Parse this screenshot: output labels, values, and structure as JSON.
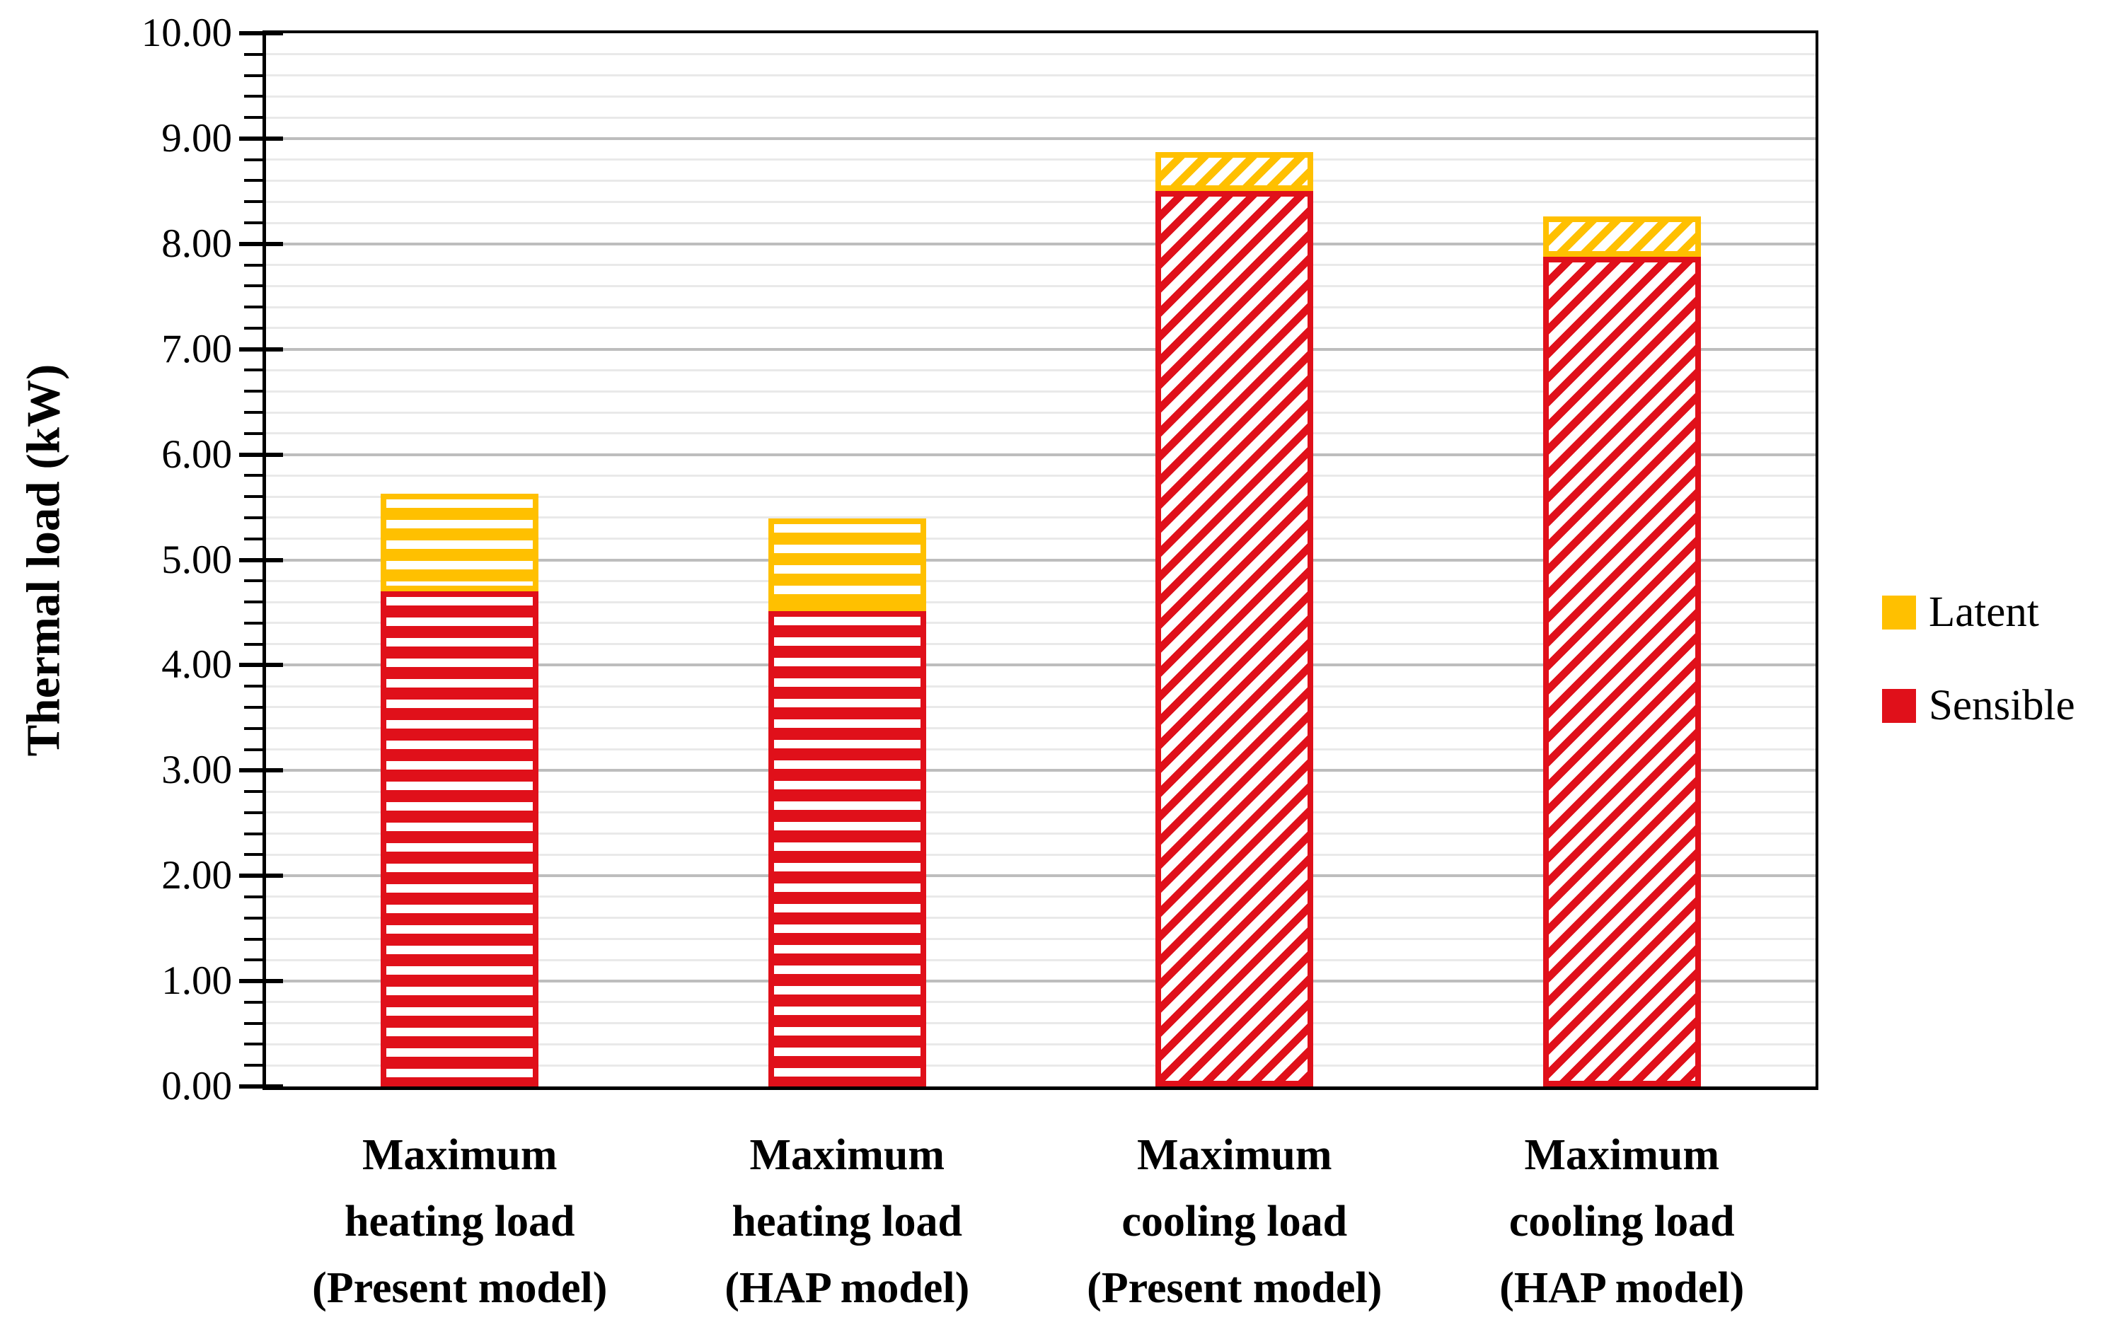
{
  "chart_data": {
    "type": "bar",
    "stacked": true,
    "title": "",
    "ylabel": "Thermal load (kW)",
    "xlabel": "",
    "categories": [
      {
        "label": "Maximum heating load (Present model)",
        "lines": [
          "Maximum",
          "heating load",
          "(Present model)"
        ]
      },
      {
        "label": "Maximum heating load (HAP model)",
        "lines": [
          "Maximum",
          "heating load",
          "(HAP model)"
        ]
      },
      {
        "label": "Maximum cooling load (Present model)",
        "lines": [
          "Maximum",
          "cooling load",
          "(Present model)"
        ]
      },
      {
        "label": "Maximum cooling load (HAP model)",
        "lines": [
          "Maximum",
          "cooling load",
          "(HAP model)"
        ]
      }
    ],
    "series": [
      {
        "name": "Sensible",
        "color": "#e0101a",
        "values": [
          4.7,
          4.51,
          8.5,
          7.88
        ]
      },
      {
        "name": "Latent",
        "color": "#ffc000",
        "values": [
          0.93,
          0.88,
          0.37,
          0.38
        ]
      }
    ],
    "stack_totals": [
      5.63,
      5.39,
      8.87,
      8.26
    ],
    "hatch_by_category": [
      "horizontal",
      "horizontal",
      "diagonal",
      "diagonal"
    ],
    "ylim": [
      0,
      10
    ],
    "y_major_step": 1.0,
    "y_minor_step": 0.2,
    "y_tick_labels": [
      "0.00",
      "1.00",
      "2.00",
      "3.00",
      "4.00",
      "5.00",
      "6.00",
      "7.00",
      "8.00",
      "9.00",
      "10.00"
    ],
    "grid": {
      "horizontal_major": true,
      "horizontal_minor": true,
      "vertical": false
    },
    "legend": {
      "position": "right",
      "entries": [
        {
          "label": "Latent",
          "color": "#ffc000"
        },
        {
          "label": "Sensible",
          "color": "#e0101a"
        }
      ]
    }
  },
  "colors": {
    "sensible_red": "#e0101a",
    "latent_yellow": "#ffc000",
    "grid_major": "#bdbdbd",
    "grid_minor": "#e9e9e9",
    "axis": "#000000",
    "background": "#ffffff"
  }
}
